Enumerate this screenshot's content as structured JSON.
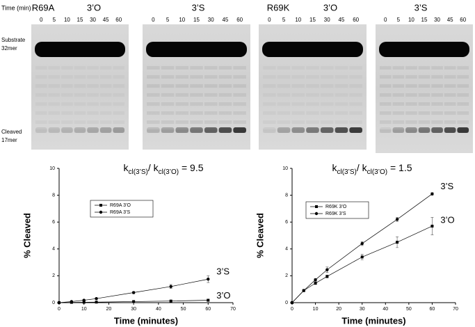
{
  "time_header": "Time (min)",
  "lanes": [
    0,
    5,
    10,
    15,
    30,
    45,
    60
  ],
  "gels": [
    {
      "mutant": "R69A",
      "condition": "3’O"
    },
    {
      "mutant": null,
      "condition": "3’S"
    },
    {
      "mutant": "R69K",
      "condition": "3’O"
    },
    {
      "mutant": null,
      "condition": "3’S"
    }
  ],
  "row_labels": {
    "substrate": [
      "Substrate",
      "32mer"
    ],
    "cleaved": [
      "Cleaved",
      "17mer"
    ]
  },
  "chart_data": [
    {
      "type": "line",
      "title_parts": [
        "k",
        "cl(3’S)",
        "/ k",
        "cl(3’O)",
        " = 9.5"
      ],
      "x_label": "Time (minutes)",
      "y_label": "% Cleaved",
      "x": [
        0,
        5,
        10,
        15,
        30,
        45,
        60
      ],
      "xlim": [
        0,
        70
      ],
      "xticks": [
        0,
        10,
        20,
        30,
        40,
        50,
        60,
        70
      ],
      "ylim": [
        0,
        10
      ],
      "yticks": [
        0,
        2,
        4,
        6,
        8,
        10
      ],
      "series": [
        {
          "name": "R69A 3’O",
          "color": "#000000",
          "marker": "square",
          "end_label": "3’O",
          "values": [
            0,
            0.02,
            0.03,
            0.04,
            0.08,
            0.12,
            0.18
          ],
          "errors": [
            0,
            0.01,
            0.01,
            0.01,
            0.02,
            0.03,
            0.04
          ]
        },
        {
          "name": "R69A 3’S",
          "color": "#000000",
          "marker": "circle",
          "end_label": "3’S",
          "values": [
            0,
            0.08,
            0.18,
            0.3,
            0.75,
            1.2,
            1.75
          ],
          "errors": [
            0,
            0.02,
            0.05,
            0.05,
            0.08,
            0.15,
            0.25
          ]
        }
      ]
    },
    {
      "type": "line",
      "title_parts": [
        "k",
        "cl(3’S)",
        "/ k",
        "cl(3’O)",
        " = 1.5"
      ],
      "x_label": "Time (minutes)",
      "y_label": "% Cleaved",
      "x": [
        0,
        5,
        10,
        15,
        30,
        45,
        60
      ],
      "xlim": [
        0,
        70
      ],
      "xticks": [
        0,
        10,
        20,
        30,
        40,
        50,
        60,
        70
      ],
      "ylim": [
        0,
        10
      ],
      "yticks": [
        0,
        2,
        4,
        6,
        8,
        10
      ],
      "series": [
        {
          "name": "R69K 3’O",
          "color": "#000000",
          "marker": "square",
          "end_label": "3’O",
          "values": [
            0,
            0.9,
            1.45,
            1.95,
            3.4,
            4.5,
            5.7
          ],
          "errors": [
            0,
            0.05,
            0.1,
            0.1,
            0.2,
            0.4,
            0.65
          ]
        },
        {
          "name": "R69K 3’S",
          "color": "#000000",
          "marker": "circle",
          "end_label": "3’S",
          "values": [
            0,
            0.9,
            1.7,
            2.45,
            4.4,
            6.2,
            8.1
          ],
          "errors": [
            0,
            0.05,
            0.1,
            0.2,
            0.15,
            0.15,
            0.1
          ]
        }
      ]
    }
  ]
}
